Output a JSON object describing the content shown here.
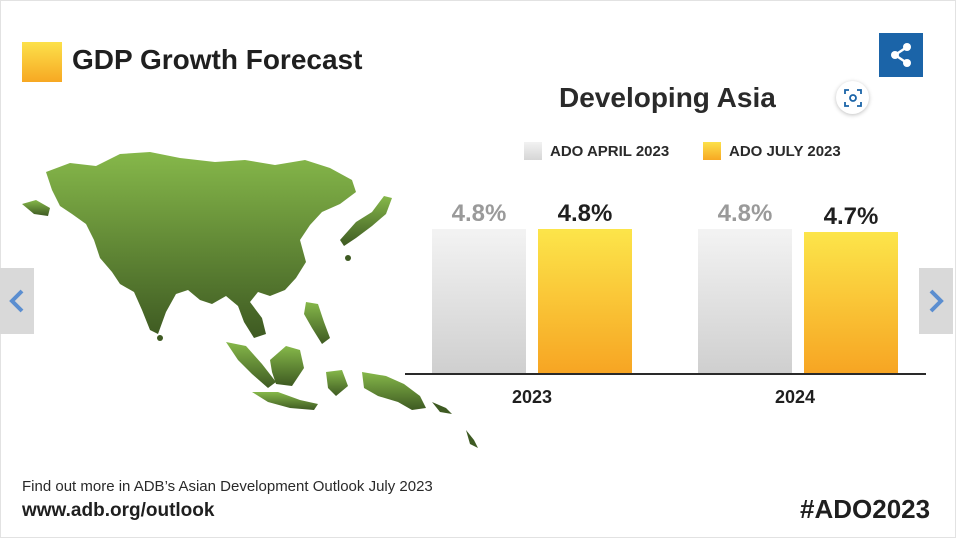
{
  "header": {
    "title": "GDP Growth Forecast",
    "share_icon": "share-icon"
  },
  "chart_data": {
    "type": "bar",
    "title": "Developing Asia",
    "categories": [
      "2023",
      "2024"
    ],
    "series": [
      {
        "name": "ADO APRIL 2023",
        "values": [
          4.8,
          4.8
        ],
        "labels": [
          "4.8%",
          "4.8%"
        ],
        "color": "#dcdcdc"
      },
      {
        "name": "ADO JULY 2023",
        "values": [
          4.8,
          4.7
        ],
        "labels": [
          "4.8%",
          "4.7%"
        ],
        "color": "#f9c532"
      }
    ],
    "colors": {
      "april_label": "#9a9a9a",
      "july_label": "#1f1f1f",
      "brand_blue": "#1b64a8",
      "map_green": "#6f9b3a"
    }
  },
  "footer": {
    "text": "Find out more in ADB’s Asian Development Outlook July 2023",
    "url": "www.adb.org/outlook",
    "hashtag": "#ADO2023"
  },
  "nav": {
    "prev_icon": "chevron-left-icon",
    "next_icon": "chevron-right-icon",
    "lens_icon": "lens-icon"
  }
}
